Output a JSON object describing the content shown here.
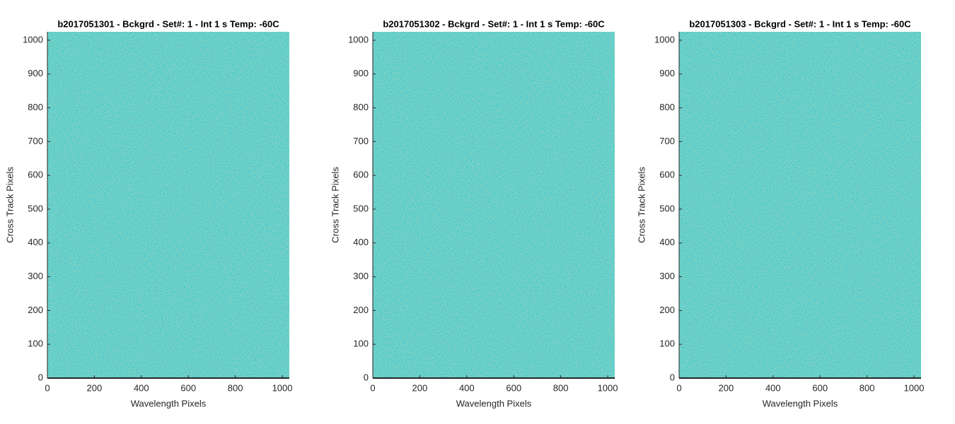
{
  "chart_data": [
    {
      "type": "image",
      "title": "b2017051301 - Bckgrd - Set#: 1 - Int 1 s Temp: -60C",
      "xlabel": "Wavelength Pixels",
      "ylabel": "Cross Track Pixels",
      "xlim": [
        0,
        1030
      ],
      "ylim": [
        0,
        1025
      ],
      "xticks": [
        0,
        200,
        400,
        600,
        800,
        1000
      ],
      "yticks": [
        0,
        100,
        200,
        300,
        400,
        500,
        600,
        700,
        800,
        900,
        1000
      ]
    },
    {
      "type": "image",
      "title": "b2017051302 - Bckgrd - Set#: 1 - Int 1 s Temp: -60C",
      "xlabel": "Wavelength Pixels",
      "ylabel": "Cross Track Pixels",
      "xlim": [
        0,
        1030
      ],
      "ylim": [
        0,
        1025
      ],
      "xticks": [
        0,
        200,
        400,
        600,
        800,
        1000
      ],
      "yticks": [
        0,
        100,
        200,
        300,
        400,
        500,
        600,
        700,
        800,
        900,
        1000
      ]
    },
    {
      "type": "image",
      "title": "b2017051303 - Bckgrd - Set#: 1 - Int 1 s Temp: -60C",
      "xlabel": "Wavelength Pixels",
      "ylabel": "Cross Track Pixels",
      "xlim": [
        0,
        1030
      ],
      "ylim": [
        0,
        1025
      ],
      "xticks": [
        0,
        200,
        400,
        600,
        800,
        1000
      ],
      "yticks": [
        0,
        100,
        200,
        300,
        400,
        500,
        600,
        700,
        800,
        900,
        1000
      ]
    }
  ]
}
